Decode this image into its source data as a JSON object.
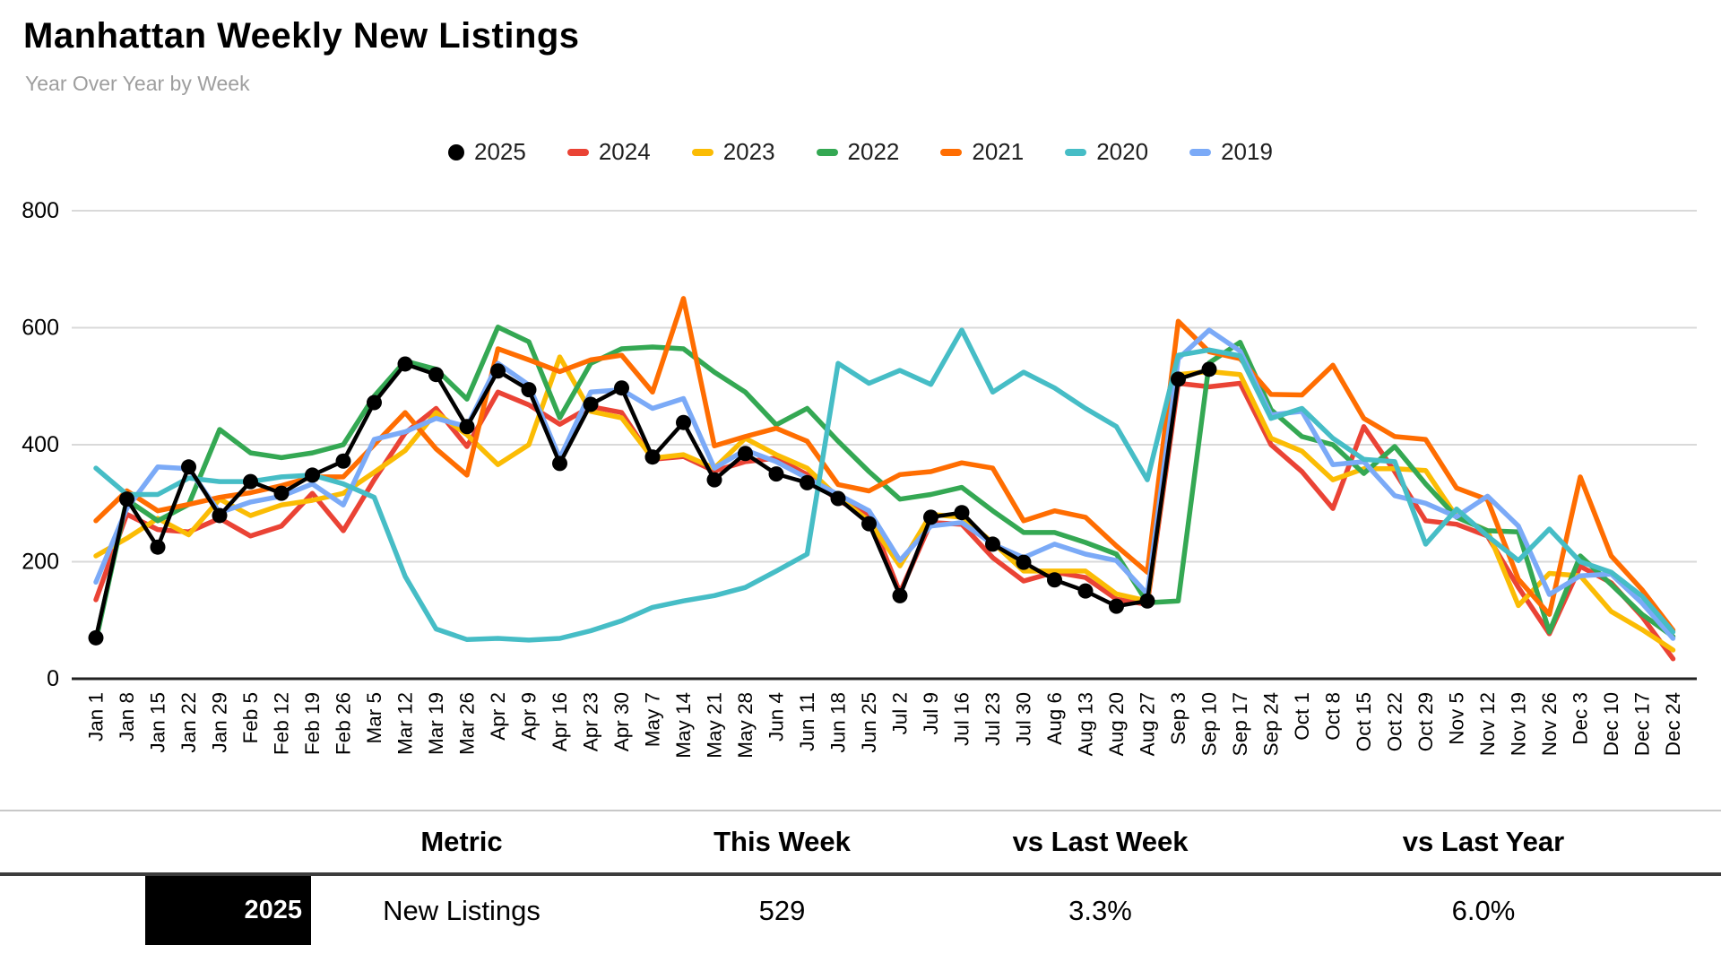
{
  "header": {
    "title": "Manhattan Weekly New Listings",
    "subtitle": "Year Over Year by Week"
  },
  "chart_data": {
    "type": "line",
    "title": "Manhattan Weekly New Listings",
    "xlabel": "",
    "ylabel": "",
    "ylim": [
      0,
      800
    ],
    "yticks": [
      0,
      200,
      400,
      600,
      800
    ],
    "grid": true,
    "legend_position": "top",
    "categories": [
      "Jan 1",
      "Jan 8",
      "Jan 15",
      "Jan 22",
      "Jan 29",
      "Feb 5",
      "Feb 12",
      "Feb 19",
      "Feb 26",
      "Mar 5",
      "Mar 12",
      "Mar 19",
      "Mar 26",
      "Apr 2",
      "Apr 9",
      "Apr 16",
      "Apr 23",
      "Apr 30",
      "May 7",
      "May 14",
      "May 21",
      "May 28",
      "Jun 4",
      "Jun 11",
      "Jun 18",
      "Jun 25",
      "Jul 2",
      "Jul 9",
      "Jul 16",
      "Jul 23",
      "Jul 30",
      "Aug 6",
      "Aug 13",
      "Aug 20",
      "Aug 27",
      "Sep 3",
      "Sep 10",
      "Sep 17",
      "Sep 24",
      "Oct 1",
      "Oct 8",
      "Oct 15",
      "Oct 22",
      "Oct 29",
      "Nov 5",
      "Nov 12",
      "Nov 19",
      "Nov 26",
      "Dec 3",
      "Dec 10",
      "Dec 17",
      "Dec 24"
    ],
    "series": [
      {
        "name": "2025",
        "color": "#000000",
        "marker": "circle",
        "values": [
          70,
          307,
          225,
          362,
          279,
          337,
          317,
          348,
          372,
          472,
          538,
          520,
          431,
          526,
          494,
          368,
          469,
          497,
          379,
          438,
          340,
          385,
          350,
          335,
          308,
          265,
          142,
          276,
          284,
          230,
          199,
          169,
          150,
          124,
          133,
          512,
          529,
          null,
          null,
          null,
          null,
          null,
          null,
          null,
          null,
          null,
          null,
          null,
          null,
          null,
          null,
          null
        ]
      },
      {
        "name": "2024",
        "color": "#ea4335",
        "marker": "dash",
        "values": [
          135,
          281,
          255,
          251,
          274,
          244,
          261,
          317,
          253,
          340,
          420,
          462,
          397,
          490,
          468,
          435,
          465,
          455,
          375,
          380,
          355,
          371,
          377,
          349,
          304,
          281,
          147,
          267,
          264,
          207,
          167,
          182,
          173,
          136,
          127,
          505,
          499,
          505,
          400,
          354,
          291,
          431,
          354,
          270,
          264,
          244,
          156,
          77,
          192,
          164,
          106,
          34
        ]
      },
      {
        "name": "2023",
        "color": "#fbbc04",
        "marker": "dash",
        "values": [
          210,
          240,
          274,
          246,
          307,
          279,
          297,
          305,
          317,
          353,
          390,
          455,
          417,
          366,
          400,
          550,
          457,
          446,
          377,
          383,
          360,
          411,
          383,
          360,
          310,
          270,
          193,
          281,
          276,
          233,
          184,
          184,
          184,
          145,
          133,
          520,
          525,
          520,
          411,
          389,
          340,
          359,
          359,
          356,
          277,
          253,
          125,
          180,
          176,
          115,
          84,
          49
        ]
      },
      {
        "name": "2022",
        "color": "#34a853",
        "marker": "dash",
        "values": [
          65,
          306,
          270,
          298,
          426,
          386,
          378,
          386,
          400,
          483,
          543,
          529,
          478,
          601,
          576,
          446,
          539,
          564,
          567,
          564,
          524,
          490,
          434,
          462,
          406,
          354,
          307,
          315,
          327,
          287,
          250,
          250,
          233,
          213,
          130,
          133,
          540,
          575,
          460,
          414,
          400,
          351,
          397,
          333,
          276,
          253,
          251,
          80,
          210,
          161,
          110,
          72
        ]
      },
      {
        "name": "2021",
        "color": "#ff6d01",
        "marker": "dash",
        "values": [
          270,
          321,
          287,
          298,
          310,
          318,
          330,
          345,
          345,
          400,
          455,
          393,
          348,
          564,
          545,
          525,
          545,
          553,
          490,
          650,
          398,
          414,
          428,
          406,
          332,
          321,
          349,
          354,
          369,
          360,
          270,
          287,
          276,
          227,
          182,
          611,
          559,
          547,
          486,
          485,
          536,
          445,
          414,
          409,
          326,
          306,
          170,
          110,
          345,
          210,
          152,
          83
        ]
      },
      {
        "name": "2020",
        "color": "#46bdc6",
        "marker": "dash",
        "values": [
          360,
          315,
          315,
          343,
          337,
          337,
          345,
          348,
          333,
          310,
          175,
          85,
          67,
          69,
          66,
          69,
          82,
          99,
          122,
          133,
          142,
          156,
          184,
          213,
          539,
          505,
          527,
          503,
          596,
          490,
          524,
          497,
          462,
          431,
          340,
          553,
          562,
          552,
          445,
          462,
          411,
          375,
          371,
          230,
          290,
          244,
          202,
          256,
          200,
          182,
          141,
          80
        ]
      },
      {
        "name": "2019",
        "color": "#7baaf7",
        "marker": "dash",
        "values": [
          165,
          291,
          362,
          359,
          284,
          302,
          312,
          333,
          297,
          409,
          422,
          445,
          431,
          539,
          502,
          377,
          490,
          494,
          462,
          479,
          360,
          391,
          371,
          343,
          315,
          287,
          202,
          261,
          267,
          230,
          207,
          230,
          213,
          202,
          145,
          547,
          596,
          560,
          451,
          457,
          366,
          371,
          313,
          300,
          277,
          312,
          261,
          144,
          176,
          179,
          129,
          69
        ]
      }
    ]
  },
  "table": {
    "columns": [
      "Metric",
      "This Week",
      "vs Last Week",
      "vs Last Year"
    ],
    "rows": [
      {
        "year": "2025",
        "metric": "New Listings",
        "this_week": "529",
        "vs_last_week": "3.3%",
        "vs_last_year": "6.0%"
      }
    ]
  }
}
